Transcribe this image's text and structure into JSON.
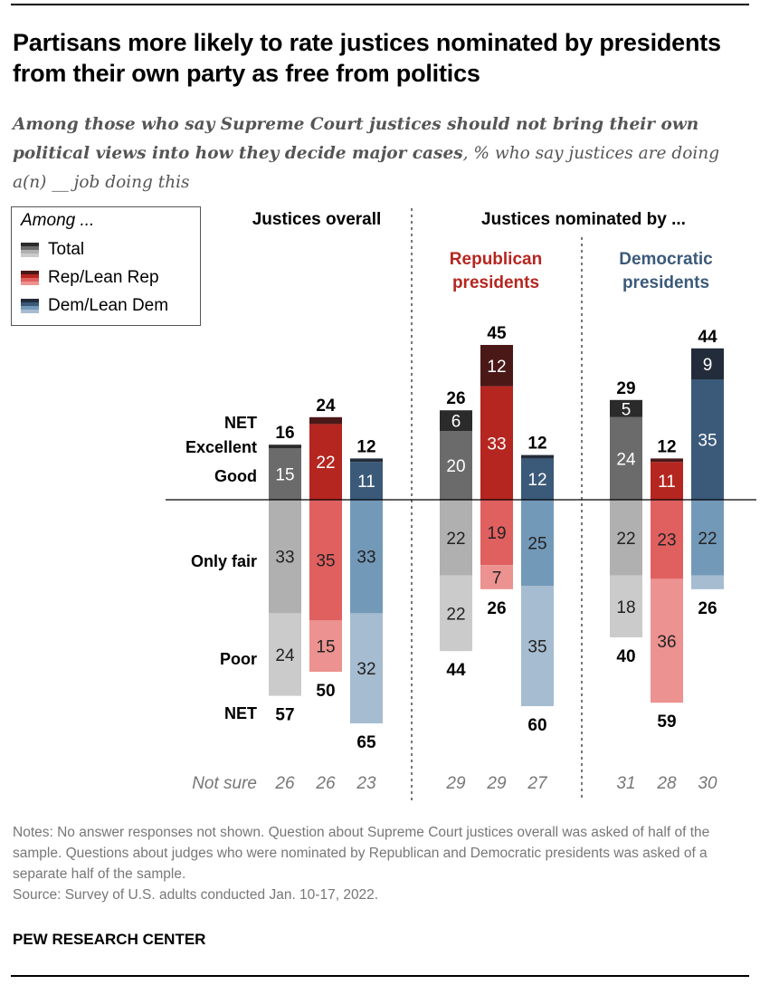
{
  "title": "Partisans more likely to rate justices nominated by presidents from their own party as free from politics",
  "subtitle_bold": "Among those who say Supreme Court justices should not bring their own political views into how they decide major cases",
  "subtitle_rest": ", % who say justices are doing a(n) __ job doing this",
  "legend": {
    "heading": "Among ...",
    "items": [
      "Total",
      "Rep/Lean Rep",
      "Dem/Lean Dem"
    ]
  },
  "notes": "Notes: No answer responses not shown. Question about Supreme Court justices overall was asked of half of the sample. Questions about judges who were nominated by Republican and Democratic presidents was asked of a separate half of the sample.",
  "source": "Source: Survey of U.S. adults conducted Jan. 10-17, 2022.",
  "brand": "PEW RESEARCH CENTER",
  "chart_data": {
    "type": "bar",
    "stacking": "diverging",
    "headers": {
      "overall": "Justices overall",
      "nominated": "Justices nominated by ...",
      "rep_group": "Republican presidents",
      "dem_group": "Democratic presidents"
    },
    "row_labels": {
      "net_top": "NET",
      "excellent": "Excellent",
      "good": "Good",
      "only_fair": "Only fair",
      "poor": "Poor",
      "net_bottom": "NET",
      "not_sure": "Not sure"
    },
    "segments": [
      "Excellent",
      "Good",
      "Only fair",
      "Poor"
    ],
    "colors": {
      "Total": [
        "#2b2b2b",
        "#6b6b6b",
        "#b0b0b0",
        "#cbcbcb"
      ],
      "Rep/Lean Rep": [
        "#4b1818",
        "#b52620",
        "#e06060",
        "#ec9290"
      ],
      "Dem/Lean Dem": [
        "#222c3a",
        "#3b5a7a",
        "#7399b8",
        "#a6bcd0"
      ]
    },
    "groups": [
      {
        "name": "Justices overall",
        "bars": [
          {
            "series": "Total",
            "values": [
              1,
              15,
              33,
              24
            ],
            "labels": [
              "",
              "15",
              "33",
              "24"
            ],
            "net_positive": 16,
            "net_negative": 57,
            "not_sure": 26
          },
          {
            "series": "Rep/Lean Rep",
            "values": [
              2,
              22,
              35,
              15
            ],
            "labels": [
              "",
              "22",
              "35",
              "15"
            ],
            "net_positive": 24,
            "net_negative": 50,
            "not_sure": 26
          },
          {
            "series": "Dem/Lean Dem",
            "values": [
              1,
              11,
              33,
              32
            ],
            "labels": [
              "",
              "11",
              "33",
              "32"
            ],
            "net_positive": 12,
            "net_negative": 65,
            "not_sure": 23
          }
        ]
      },
      {
        "name": "Republican presidents",
        "bars": [
          {
            "series": "Total",
            "values": [
              6,
              20,
              22,
              22
            ],
            "labels": [
              "6",
              "20",
              "22",
              "22"
            ],
            "net_positive": 26,
            "net_negative": 44,
            "not_sure": 29
          },
          {
            "series": "Rep/Lean Rep",
            "values": [
              12,
              33,
              19,
              7
            ],
            "labels": [
              "12",
              "33",
              "19",
              "7"
            ],
            "net_positive": 45,
            "net_negative": 26,
            "not_sure": 29
          },
          {
            "series": "Dem/Lean Dem",
            "values": [
              1,
              12,
              25,
              35
            ],
            "labels": [
              "",
              "12",
              "25",
              "35"
            ],
            "net_positive": 12,
            "net_negative": 60,
            "not_sure": 27
          }
        ]
      },
      {
        "name": "Democratic presidents",
        "bars": [
          {
            "series": "Total",
            "values": [
              5,
              24,
              22,
              18
            ],
            "labels": [
              "5",
              "24",
              "22",
              "18"
            ],
            "net_positive": 29,
            "net_negative": 40,
            "not_sure": 31
          },
          {
            "series": "Rep/Lean Rep",
            "values": [
              1,
              11,
              23,
              36
            ],
            "labels": [
              "",
              "11",
              "23",
              "36"
            ],
            "net_positive": 12,
            "net_negative": 59,
            "not_sure": 28
          },
          {
            "series": "Dem/Lean Dem",
            "values": [
              9,
              35,
              22,
              4
            ],
            "labels": [
              "9",
              "35",
              "22",
              ""
            ],
            "net_positive": 44,
            "net_negative": 26,
            "not_sure": 30
          }
        ]
      }
    ]
  }
}
